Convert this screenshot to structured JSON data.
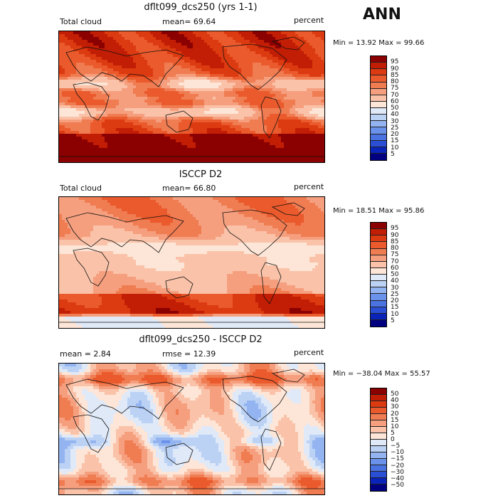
{
  "season": "ANN",
  "panels": [
    {
      "title": "dflt099_dcs250 (yrs 1-1)",
      "left_label": "Total cloud",
      "mid_label": "mean=  69.64",
      "units": "percent",
      "stats": "Min =   13.92  Max =   99.66",
      "levels": [
        "95",
        "90",
        "85",
        "80",
        "75",
        "70",
        "60",
        "50",
        "40",
        "30",
        "25",
        "20",
        "15",
        "10",
        "5"
      ],
      "colors": [
        "#8b0000",
        "#c21d05",
        "#dc3a10",
        "#ea5a2c",
        "#f07c52",
        "#f59f7f",
        "#fac3a9",
        "#fde6d7",
        "#dfe9f8",
        "#bcd2f5",
        "#93b4f0",
        "#6b92ea",
        "#4a72e0",
        "#2a4fd4",
        "#0a23b8",
        "#000080"
      ],
      "field": "model"
    },
    {
      "title": "ISCCP D2",
      "left_label": "Total cloud",
      "mid_label": "mean=  66.80",
      "units": "percent",
      "stats": "Min =   18.51  Max =   95.86",
      "levels": [
        "95",
        "90",
        "85",
        "80",
        "75",
        "70",
        "60",
        "50",
        "40",
        "30",
        "25",
        "20",
        "15",
        "10",
        "5"
      ],
      "colors": [
        "#8b0000",
        "#c21d05",
        "#dc3a10",
        "#ea5a2c",
        "#f07c52",
        "#f59f7f",
        "#fac3a9",
        "#fde6d7",
        "#dfe9f8",
        "#bcd2f5",
        "#93b4f0",
        "#6b92ea",
        "#4a72e0",
        "#2a4fd4",
        "#0a23b8",
        "#000080"
      ],
      "field": "obs"
    },
    {
      "title": "dflt099_dcs250 - ISCCP D2",
      "left_label": "mean =    2.84",
      "mid_label": "rmse =   12.39",
      "units": "percent",
      "stats": "Min =  −38.04  Max =   55.57",
      "levels": [
        "50",
        "40",
        "30",
        "20",
        "15",
        "10",
        "5",
        "0",
        "−5",
        "−10",
        "−15",
        "−20",
        "−30",
        "−40",
        "−50"
      ],
      "colors": [
        "#8b0000",
        "#c21d05",
        "#dc3a10",
        "#ea5a2c",
        "#f07c52",
        "#f59f7f",
        "#fac3a9",
        "#fde6d7",
        "#dfe9f8",
        "#bcd2f5",
        "#93b4f0",
        "#6b92ea",
        "#4a72e0",
        "#2a4fd4",
        "#0a23b8",
        "#000080"
      ],
      "field": "diff"
    }
  ]
}
